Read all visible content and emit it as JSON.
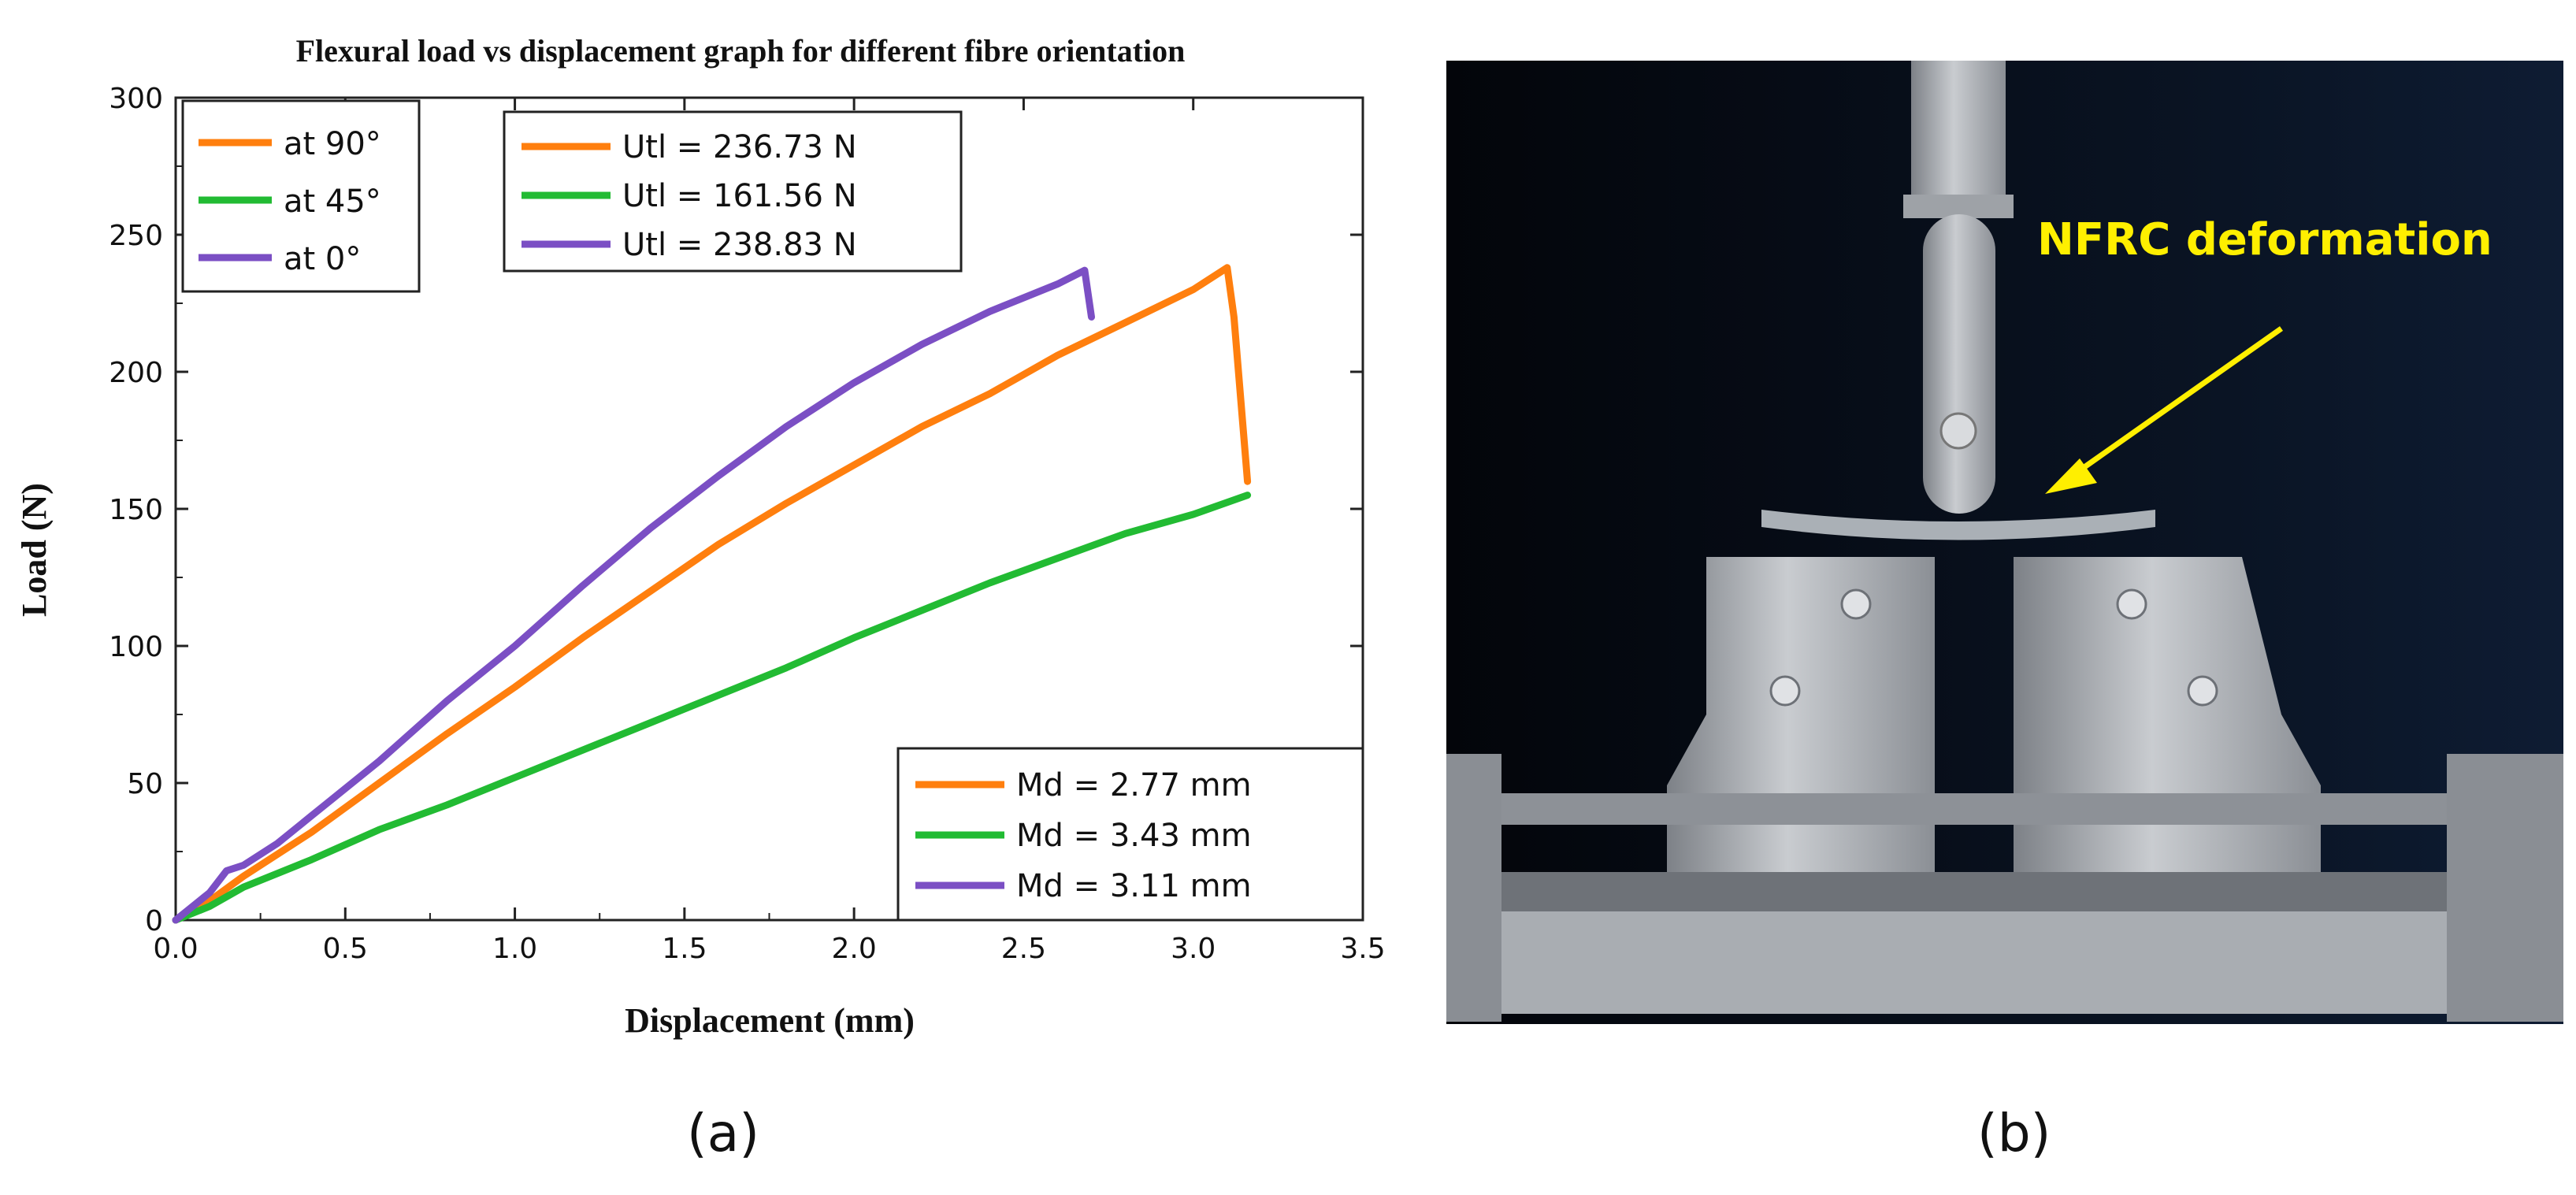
{
  "panel_a": {
    "caption": "(a)"
  },
  "panel_b": {
    "caption": "(b)",
    "annotation": "NFRC deformation"
  },
  "chart_data": {
    "type": "line",
    "title": "Flexural load vs displacement graph for different fibre orientation",
    "xlabel": "Displacement (mm)",
    "ylabel": "Load (N)",
    "xlim": [
      0,
      3.5
    ],
    "ylim": [
      0,
      300
    ],
    "xticks": [
      "0.0",
      "0.5",
      "1.0",
      "1.5",
      "2.0",
      "2.5",
      "3.0",
      "3.5"
    ],
    "yticks": [
      "0",
      "50",
      "100",
      "150",
      "200",
      "250",
      "300"
    ],
    "grid": false,
    "legends": [
      {
        "placement": "top-left",
        "entries": [
          "at 90°",
          "at 45°",
          "at 0°"
        ]
      },
      {
        "placement": "top-center",
        "entries": [
          "Utl = 236.73 N",
          "Utl = 161.56 N",
          "Utl = 238.83 N"
        ]
      },
      {
        "placement": "bottom-right",
        "entries": [
          "Md = 2.77 mm",
          "Md = 3.43 mm",
          "Md = 3.11 mm"
        ]
      }
    ],
    "series": [
      {
        "name": "at 90°",
        "color": "#ff7f0e",
        "x": [
          0,
          0.1,
          0.2,
          0.4,
          0.6,
          0.8,
          1.0,
          1.2,
          1.4,
          1.6,
          1.8,
          2.0,
          2.2,
          2.4,
          2.6,
          2.8,
          3.0,
          3.1,
          3.12,
          3.16
        ],
        "y": [
          0,
          7,
          16,
          32,
          50,
          68,
          85,
          103,
          120,
          137,
          152,
          166,
          180,
          192,
          206,
          218,
          230,
          238,
          220,
          160
        ]
      },
      {
        "name": "at 45°",
        "color": "#22bb33",
        "x": [
          0,
          0.1,
          0.2,
          0.4,
          0.6,
          0.8,
          1.0,
          1.2,
          1.4,
          1.6,
          1.8,
          2.0,
          2.2,
          2.4,
          2.6,
          2.8,
          3.0,
          3.16
        ],
        "y": [
          0,
          5,
          12,
          22,
          33,
          42,
          52,
          62,
          72,
          82,
          92,
          103,
          113,
          123,
          132,
          141,
          148,
          155
        ]
      },
      {
        "name": "at 0°",
        "color": "#7b4fc4",
        "x": [
          0,
          0.1,
          0.15,
          0.2,
          0.3,
          0.4,
          0.5,
          0.6,
          0.8,
          1.0,
          1.2,
          1.4,
          1.6,
          1.8,
          2.0,
          2.2,
          2.4,
          2.6,
          2.68,
          2.7
        ],
        "y": [
          0,
          10,
          18,
          20,
          28,
          38,
          48,
          58,
          80,
          100,
          122,
          143,
          162,
          180,
          196,
          210,
          222,
          232,
          237,
          220
        ]
      }
    ]
  }
}
